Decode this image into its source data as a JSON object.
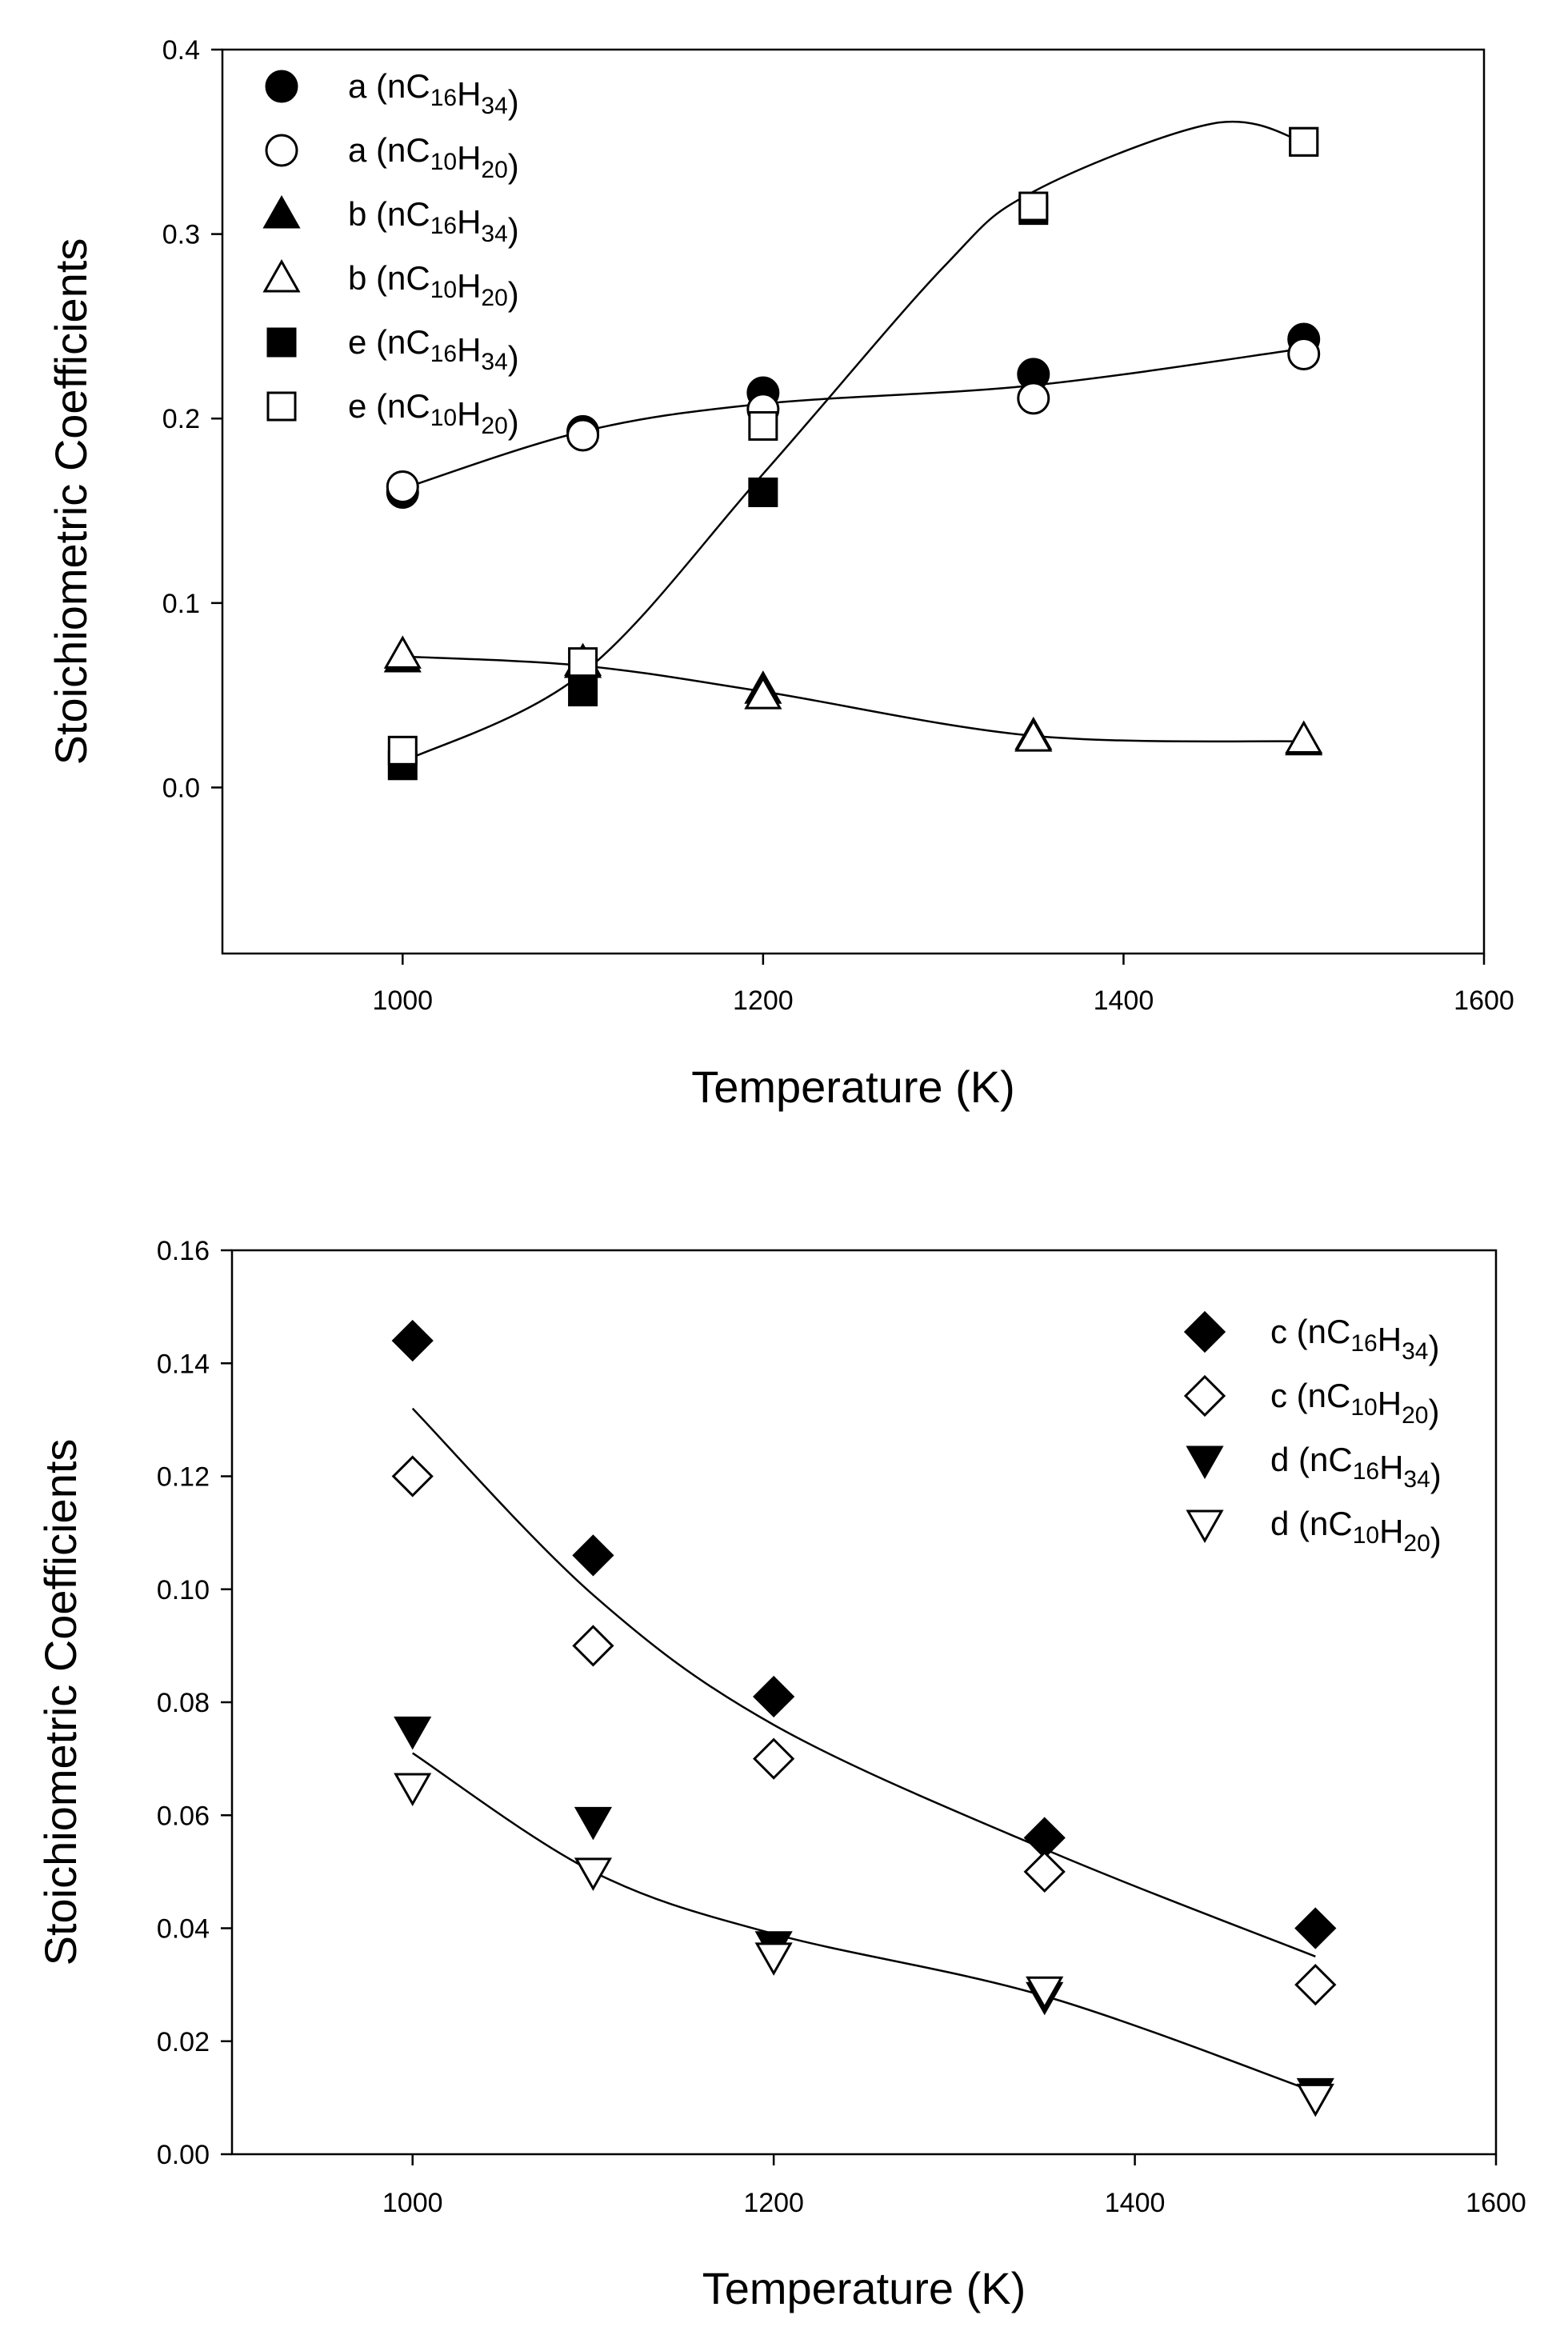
{
  "chart_data": [
    {
      "type": "scatter",
      "title": "",
      "xlabel": "Temperature (K)",
      "ylabel": "Stoichiometric Coefficients",
      "xlim": [
        900,
        1600
      ],
      "ylim": [
        -0.09,
        0.4
      ],
      "xticks": [
        1000,
        1200,
        1400,
        1600
      ],
      "yticks": [
        0.0,
        0.1,
        0.2,
        0.3,
        0.4
      ],
      "ytick_labels": [
        "0.0",
        "0.1",
        "0.2",
        "0.3",
        "0.4"
      ],
      "grid": false,
      "legend_position": "top-left",
      "x": [
        1000,
        1100,
        1200,
        1350,
        1500
      ],
      "series": [
        {
          "name": "a (nC16H34)",
          "letter": "a",
          "mol": "16H34",
          "marker": "circle",
          "filled": true,
          "values": [
            0.16,
            0.193,
            0.214,
            0.224,
            0.243
          ]
        },
        {
          "name": "a (nC10H20)",
          "letter": "a",
          "mol": "10H20",
          "marker": "circle",
          "filled": false,
          "values": [
            0.163,
            0.191,
            0.205,
            0.211,
            0.235
          ]
        },
        {
          "name": "b (nC16H34)",
          "letter": "b",
          "mol": "16H34",
          "marker": "triangle-up",
          "filled": true,
          "values": [
            0.07,
            0.067,
            0.053,
            0.028,
            0.025
          ]
        },
        {
          "name": "b (nC10H20)",
          "letter": "b",
          "mol": "10H20",
          "marker": "triangle-up",
          "filled": false,
          "values": [
            0.072,
            0.068,
            0.05,
            0.027,
            0.026
          ]
        },
        {
          "name": "e (nC16H34)",
          "letter": "e",
          "mol": "16H34",
          "marker": "square",
          "filled": true,
          "values": [
            0.012,
            0.052,
            0.16,
            0.313,
            0.35
          ]
        },
        {
          "name": "e (nC10H20)",
          "letter": "e",
          "mol": "10H20",
          "marker": "square",
          "filled": false,
          "values": [
            0.02,
            0.068,
            0.196,
            0.315,
            0.35
          ]
        }
      ],
      "fit_curves": [
        {
          "name": "a fit",
          "x": [
            1000,
            1100,
            1200,
            1350,
            1500
          ],
          "y": [
            0.162,
            0.193,
            0.208,
            0.218,
            0.238
          ]
        },
        {
          "name": "b fit",
          "x": [
            1000,
            1100,
            1200,
            1350,
            1500
          ],
          "y": [
            0.071,
            0.066,
            0.052,
            0.028,
            0.025
          ]
        },
        {
          "name": "e fit",
          "x": [
            1000,
            1100,
            1200,
            1300,
            1350,
            1450,
            1500
          ],
          "y": [
            0.014,
            0.062,
            0.17,
            0.282,
            0.323,
            0.36,
            0.35
          ]
        }
      ]
    },
    {
      "type": "scatter",
      "title": "",
      "xlabel": "Temperature (K)",
      "ylabel": "Stoichiometric Coefficients",
      "xlim": [
        900,
        1600
      ],
      "ylim": [
        0,
        0.16
      ],
      "xticks": [
        1000,
        1200,
        1400,
        1600
      ],
      "yticks": [
        0,
        0.02,
        0.04,
        0.06,
        0.08,
        0.1,
        0.12,
        0.14,
        0.16
      ],
      "ytick_labels": [
        "0.00",
        "0.02",
        "0.04",
        "0.06",
        "0.08",
        "0.10",
        "0.12",
        "0.14",
        "0.16"
      ],
      "grid": false,
      "legend_position": "top-right",
      "x": [
        1000,
        1100,
        1200,
        1350,
        1500
      ],
      "series": [
        {
          "name": "c (nC16H34)",
          "letter": "c",
          "mol": "16H34",
          "marker": "diamond",
          "filled": true,
          "values": [
            0.144,
            0.106,
            0.081,
            0.056,
            0.04
          ]
        },
        {
          "name": "c (nC10H20)",
          "letter": "c",
          "mol": "10H20",
          "marker": "diamond",
          "filled": false,
          "values": [
            0.12,
            0.09,
            0.07,
            0.05,
            0.03
          ]
        },
        {
          "name": "d (nC16H34)",
          "letter": "d",
          "mol": "16H34",
          "marker": "triangle-down",
          "filled": true,
          "values": [
            0.075,
            0.059,
            0.037,
            0.028,
            0.011
          ]
        },
        {
          "name": "d (nC10H20)",
          "letter": "d",
          "mol": "10H20",
          "marker": "triangle-down",
          "filled": false,
          "values": [
            0.065,
            0.05,
            0.035,
            0.029,
            0.01
          ]
        }
      ],
      "fit_curves": [
        {
          "name": "c fit",
          "x": [
            1000,
            1100,
            1200,
            1350,
            1500
          ],
          "y": [
            0.132,
            0.099,
            0.076,
            0.054,
            0.035
          ]
        },
        {
          "name": "d fit",
          "x": [
            1000,
            1100,
            1200,
            1350,
            1500
          ],
          "y": [
            0.071,
            0.05,
            0.039,
            0.028,
            0.011
          ]
        }
      ]
    }
  ]
}
